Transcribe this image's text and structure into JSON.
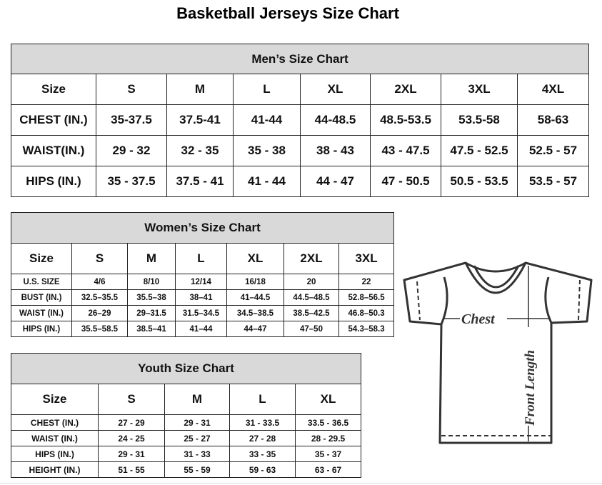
{
  "title": "Basketball Jerseys Size Chart",
  "men": {
    "title": "Men’s Size Chart",
    "header": [
      "Size",
      "S",
      "M",
      "L",
      "XL",
      "2XL",
      "3XL",
      "4XL"
    ],
    "rows": [
      [
        "CHEST (IN.)",
        "35-37.5",
        "37.5-41",
        "41-44",
        "44-48.5",
        "48.5-53.5",
        "53.5-58",
        "58-63"
      ],
      [
        "WAIST(IN.)",
        "29 - 32",
        "32 - 35",
        "35 - 38",
        "38 - 43",
        "43 - 47.5",
        "47.5 - 52.5",
        "52.5 - 57"
      ],
      [
        "HIPS (IN.)",
        "35 - 37.5",
        "37.5 - 41",
        "41 - 44",
        "44 - 47",
        "47 - 50.5",
        "50.5 - 53.5",
        "53.5 - 57"
      ]
    ]
  },
  "women": {
    "title": "Women’s Size Chart",
    "header": [
      "Size",
      "S",
      "M",
      "L",
      "XL",
      "2XL",
      "3XL"
    ],
    "rows": [
      [
        "U.S. SIZE",
        "4/6",
        "8/10",
        "12/14",
        "16/18",
        "20",
        "22"
      ],
      [
        "BUST (IN.)",
        "32.5–35.5",
        "35.5–38",
        "38–41",
        "41–44.5",
        "44.5–48.5",
        "52.8–56.5"
      ],
      [
        "WAIST (IN.)",
        "26–29",
        "29–31.5",
        "31.5–34.5",
        "34.5–38.5",
        "38.5–42.5",
        "46.8–50.3"
      ],
      [
        "HIPS (IN.)",
        "35.5–58.5",
        "38.5–41",
        "41–44",
        "44–47",
        "47–50",
        "54.3–58.3"
      ]
    ]
  },
  "youth": {
    "title": "Youth Size Chart",
    "header": [
      "Size",
      "S",
      "M",
      "L",
      "XL"
    ],
    "rows": [
      [
        "CHEST (IN.)",
        "27 - 29",
        "29 - 31",
        "31 - 33.5",
        "33.5 - 36.5"
      ],
      [
        "WAIST (IN.)",
        "24 - 25",
        "25 - 27",
        "27 - 28",
        "28 - 29.5"
      ],
      [
        "HIPS (IN.)",
        "29 - 31",
        "31 - 33",
        "33 - 35",
        "35 - 37"
      ],
      [
        "HEIGHT (IN.)",
        "51 - 55",
        "55 - 59",
        "59 - 63",
        "63 - 67"
      ]
    ]
  },
  "diagram": {
    "chest_label": "Chest",
    "length_label": "Front Length"
  }
}
